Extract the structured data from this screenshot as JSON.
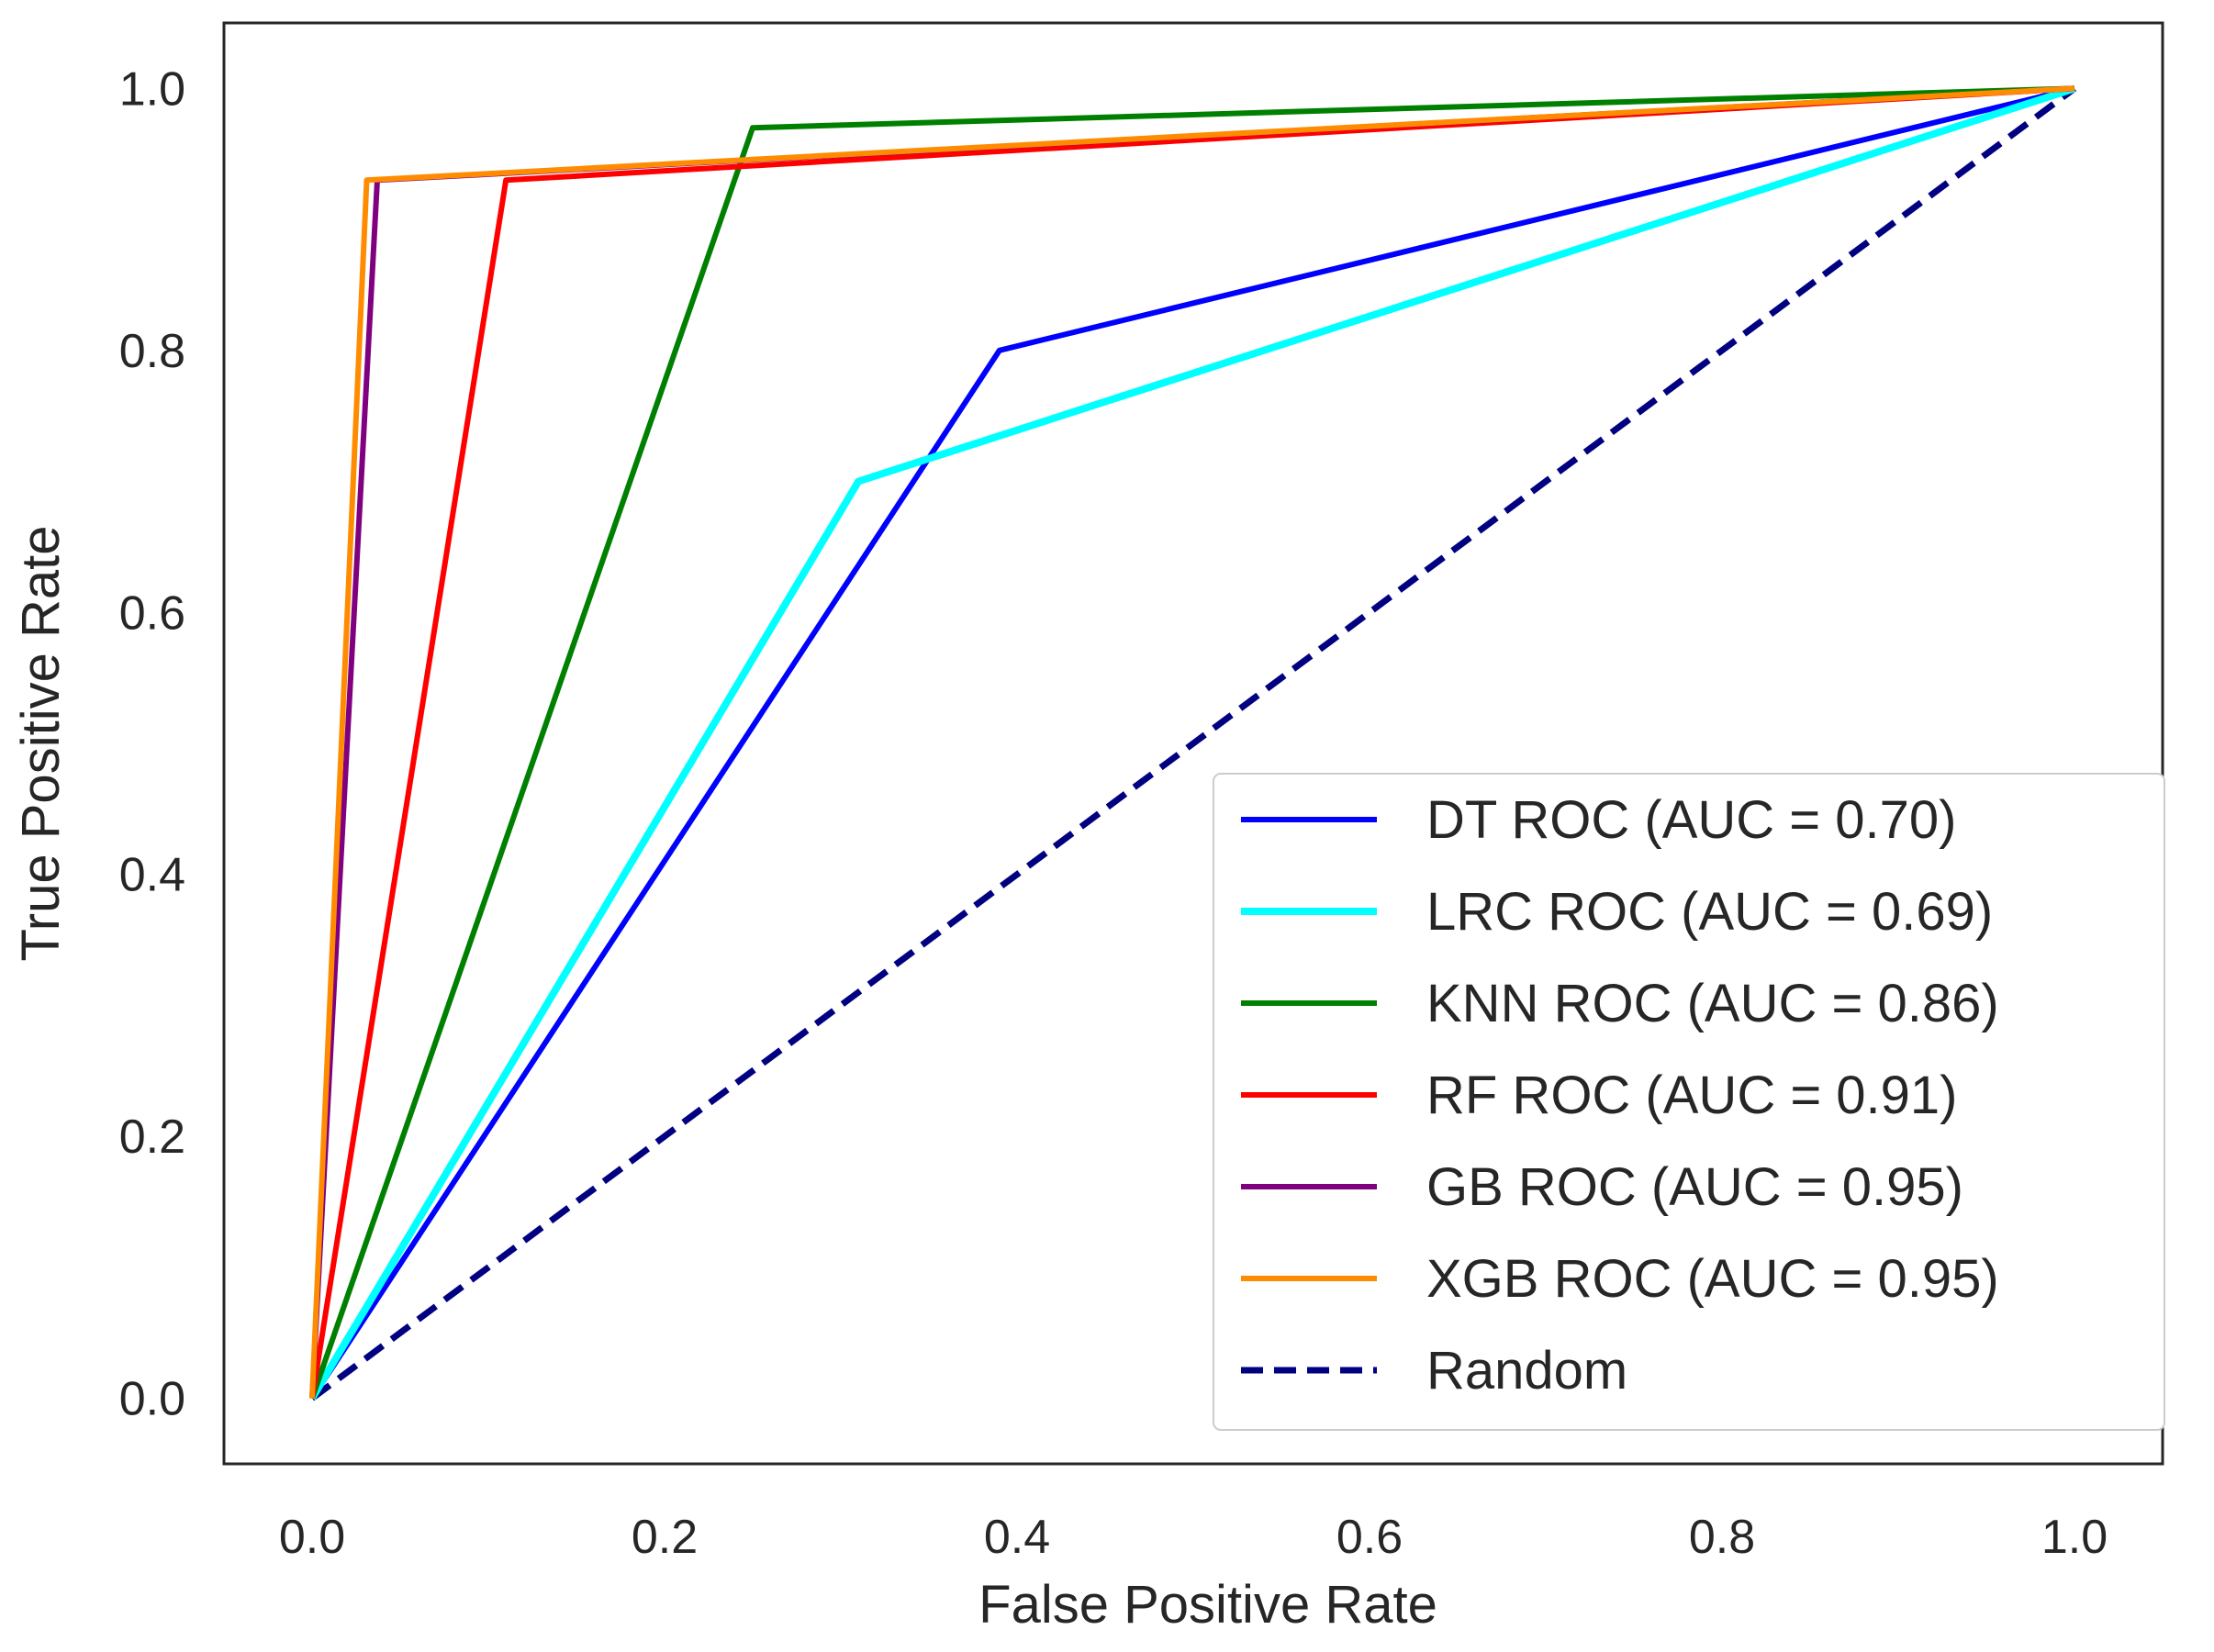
{
  "chart_data": {
    "type": "line",
    "title": "",
    "xlabel": "False Positive Rate",
    "ylabel": "True Positive Rate",
    "xlim": [
      -0.05,
      1.05
    ],
    "ylim": [
      -0.05,
      1.05
    ],
    "xticks": [
      0.0,
      0.2,
      0.4,
      0.6,
      0.8,
      1.0
    ],
    "yticks": [
      0.0,
      0.2,
      0.4,
      0.6,
      0.8,
      1.0
    ],
    "xtick_labels": [
      "0.0",
      "0.2",
      "0.4",
      "0.6",
      "0.8",
      "1.0"
    ],
    "ytick_labels": [
      "0.0",
      "0.2",
      "0.4",
      "0.6",
      "0.8",
      "1.0"
    ],
    "grid": false,
    "legend_position": "bottom-right",
    "series": [
      {
        "name": "DT ROC (AUC = 0.70)",
        "color": "#0000ff",
        "dash": "solid",
        "weight": "normal",
        "x": [
          0.0,
          0.39,
          1.0
        ],
        "y": [
          0.0,
          0.8,
          1.0
        ]
      },
      {
        "name": "LRC ROC (AUC = 0.69)",
        "color": "#00ffff",
        "dash": "solid",
        "weight": "bold",
        "x": [
          0.0,
          0.31,
          1.0
        ],
        "y": [
          0.0,
          0.7,
          1.0
        ]
      },
      {
        "name": "KNN ROC (AUC = 0.86)",
        "color": "#008000",
        "dash": "solid",
        "weight": "normal",
        "x": [
          0.0,
          0.25,
          1.0
        ],
        "y": [
          0.0,
          0.97,
          1.0
        ]
      },
      {
        "name": "RF ROC (AUC = 0.91)",
        "color": "#ff0000",
        "dash": "solid",
        "weight": "normal",
        "x": [
          0.0,
          0.11,
          1.0
        ],
        "y": [
          0.0,
          0.93,
          1.0
        ]
      },
      {
        "name": "GB ROC (AUC = 0.95)",
        "color": "#800080",
        "dash": "solid",
        "weight": "normal",
        "x": [
          0.0,
          0.037,
          1.0
        ],
        "y": [
          0.0,
          0.93,
          1.0
        ]
      },
      {
        "name": "XGB ROC (AUC = 0.95)",
        "color": "#ff8c00",
        "dash": "solid",
        "weight": "normal",
        "x": [
          0.0,
          0.031,
          1.0
        ],
        "y": [
          0.0,
          0.93,
          1.0
        ]
      },
      {
        "name": "Random",
        "color": "#000080",
        "dash": "dashed",
        "weight": "normal",
        "x": [
          0.0,
          1.0
        ],
        "y": [
          0.0,
          1.0
        ]
      }
    ]
  }
}
